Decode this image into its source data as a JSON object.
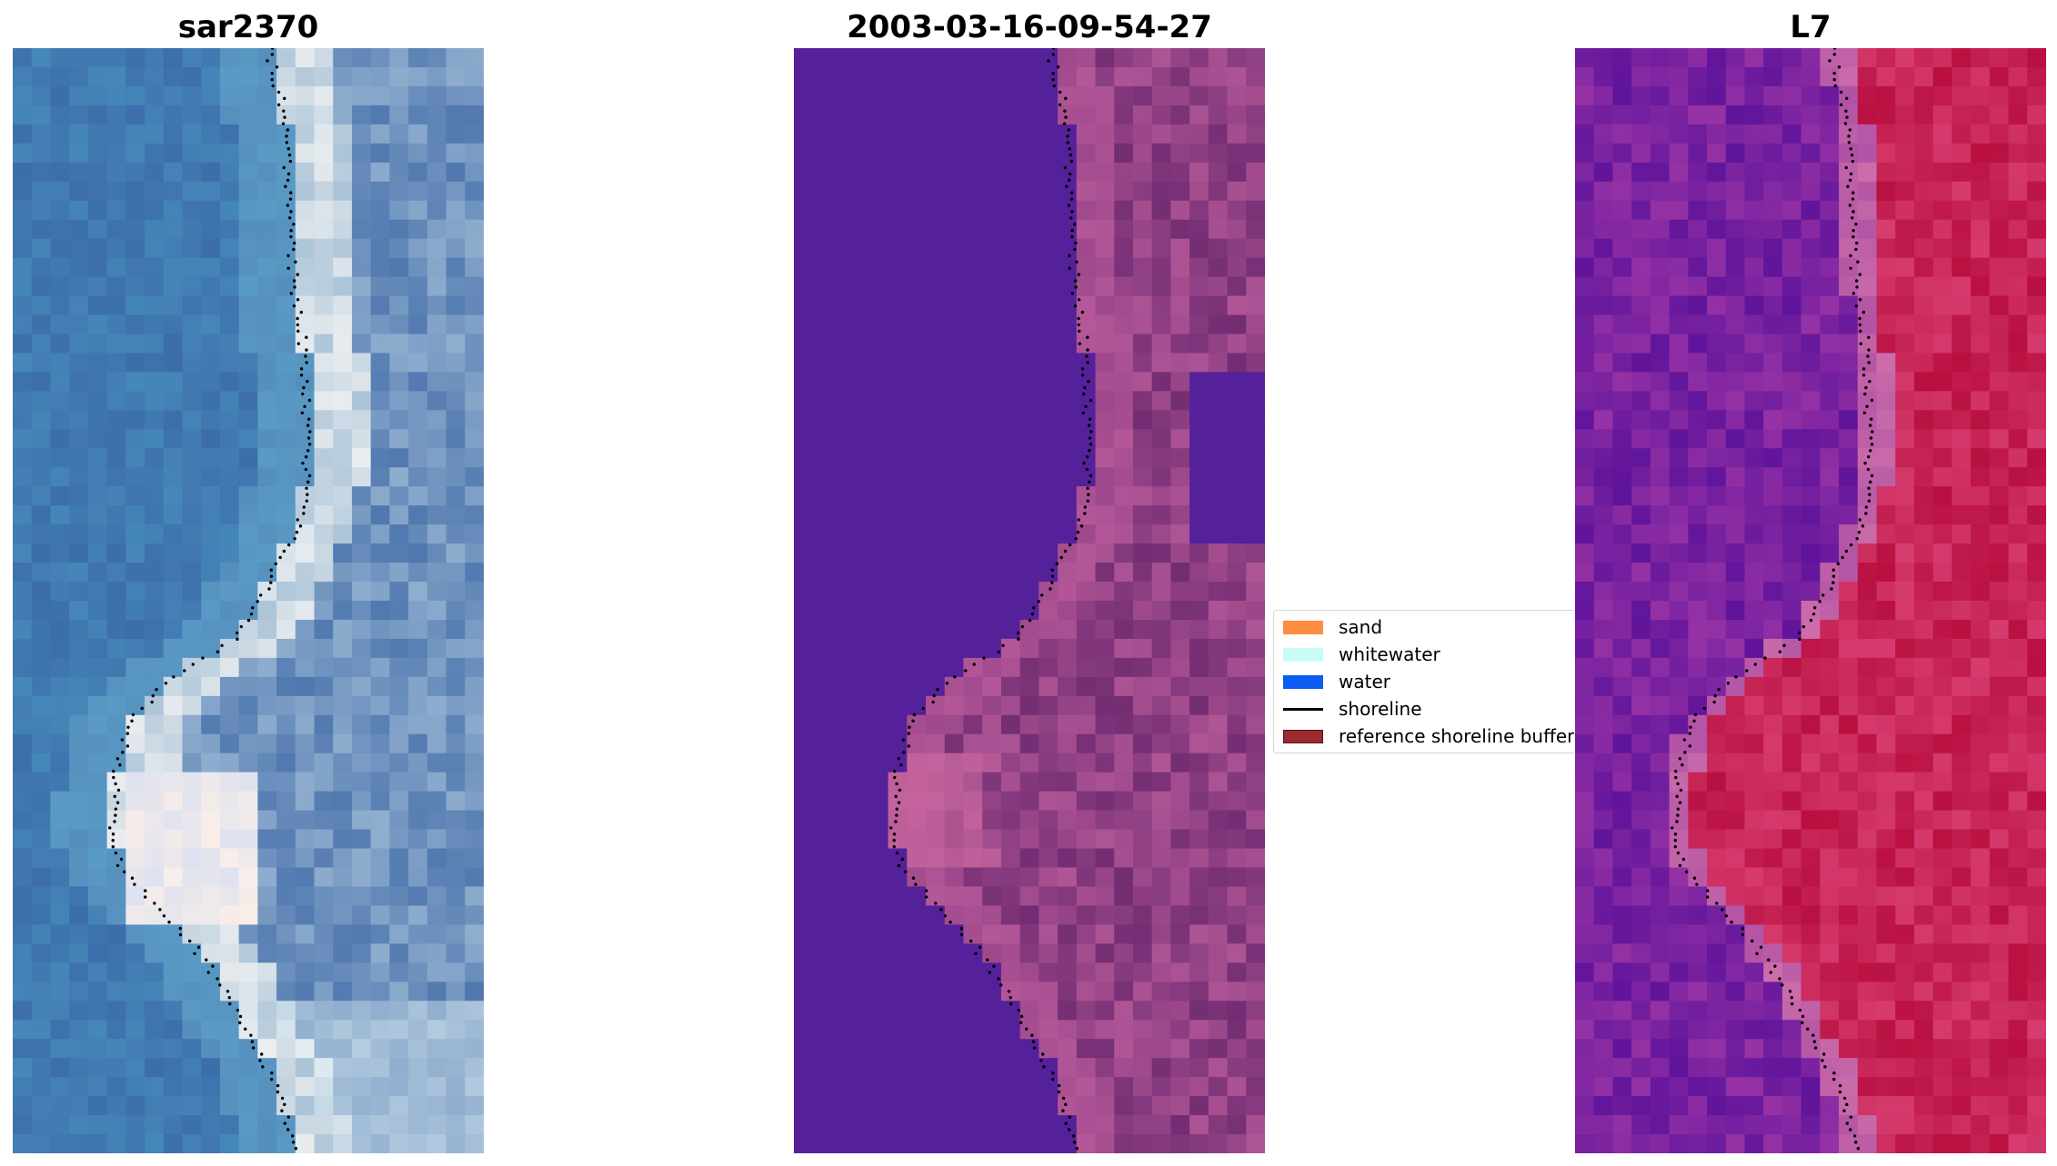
{
  "panels": [
    {
      "id": "rgb",
      "title": "sar2370"
    },
    {
      "id": "classified",
      "title": "2003-03-16-09-54-27"
    },
    {
      "id": "mndwi",
      "title": "L7"
    }
  ],
  "legend": {
    "placement": "center",
    "items": [
      {
        "label": "sand",
        "kind": "patch",
        "color": "#ff8c40"
      },
      {
        "label": "whitewater",
        "kind": "patch",
        "color": "#c9fcf7"
      },
      {
        "label": "water",
        "kind": "patch",
        "color": "#0a5cf5"
      },
      {
        "label": "shoreline",
        "kind": "line",
        "color": "#000000"
      },
      {
        "label": "reference shoreline buffer",
        "kind": "patch",
        "color": "#9a2a30"
      }
    ]
  },
  "colors": {
    "water_rgb": "#4a7cb3",
    "whitewater_rgb": "#e8ecee",
    "classified_water": "#55219a",
    "classified_land": "#7a3478",
    "index_water": "#6e1ea8",
    "index_land": "#c0143e",
    "shoreline": "#000000"
  }
}
